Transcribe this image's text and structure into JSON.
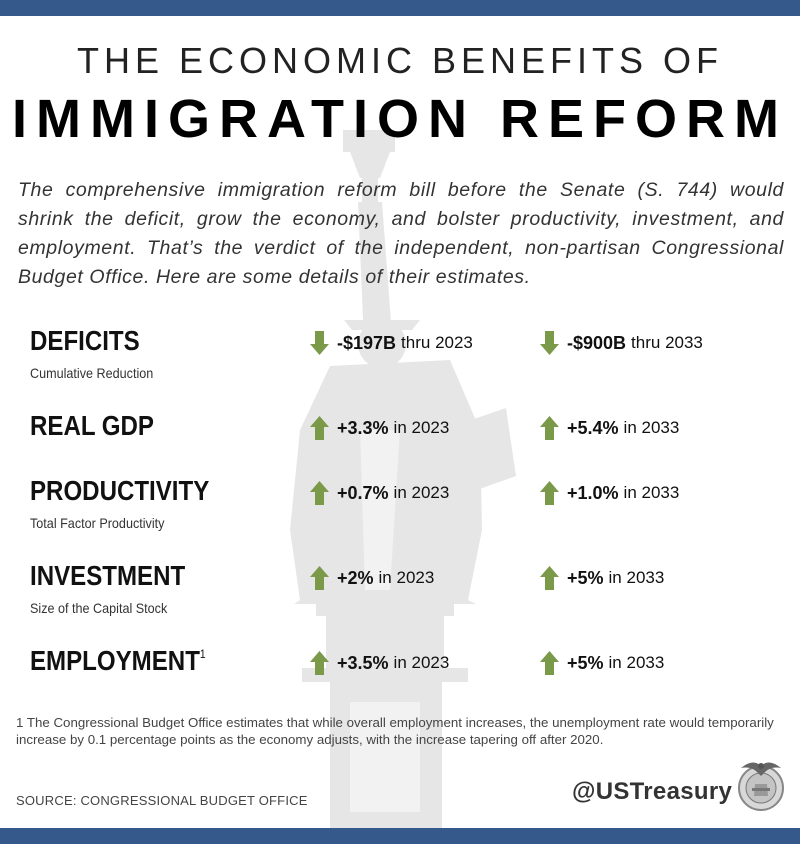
{
  "title": {
    "line1": "THE ECONOMIC BENEFITS OF",
    "line2": "IMMIGRATION REFORM"
  },
  "intro": "The comprehensive immigration reform bill before the Senate (S. 744) would shrink the deficit, grow the economy, and bolster productivity, investment, and employment. That’s the verdict of the independent, non-partisan Congressional Budget Office. Here are some details of their estimates.",
  "colors": {
    "bar": "#34598a",
    "arrow": "#7a9a4a",
    "watermark": "#e6e6e6"
  },
  "rows": [
    {
      "label": "DEFICITS",
      "sup": "",
      "sublabel": "Cumulative Reduction",
      "col1": {
        "direction": "down",
        "value": "-$197B",
        "suffix": "thru 2023"
      },
      "col2": {
        "direction": "down",
        "value": "-$900B",
        "suffix": "thru 2033"
      }
    },
    {
      "label": "REAL GDP",
      "sup": "",
      "sublabel": "",
      "col1": {
        "direction": "up",
        "value": "+3.3%",
        "suffix": "in 2023"
      },
      "col2": {
        "direction": "up",
        "value": "+5.4%",
        "suffix": "in 2033"
      }
    },
    {
      "label": "PRODUCTIVITY",
      "sup": "",
      "sublabel": "Total Factor Productivity",
      "col1": {
        "direction": "up",
        "value": "+0.7%",
        "suffix": "in 2023"
      },
      "col2": {
        "direction": "up",
        "value": "+1.0%",
        "suffix": "in 2033"
      }
    },
    {
      "label": "INVESTMENT",
      "sup": "",
      "sublabel": "Size of the Capital Stock",
      "col1": {
        "direction": "up",
        "value": "+2%",
        "suffix": "in 2023"
      },
      "col2": {
        "direction": "up",
        "value": "+5%",
        "suffix": "in 2033"
      }
    },
    {
      "label": "EMPLOYMENT",
      "sup": "1",
      "sublabel": "",
      "col1": {
        "direction": "up",
        "value": "+3.5%",
        "suffix": "in 2023"
      },
      "col2": {
        "direction": "up",
        "value": "+5%",
        "suffix": "in 2033"
      }
    }
  ],
  "footnote": "1  The Congressional Budget Office estimates that while overall employment increases, the unemployment rate would temporarily increase by 0.1 percentage points as the economy adjusts, with the increase tapering off after 2020.",
  "source": "SOURCE: CONGRESSIONAL BUDGET OFFICE",
  "handle": "@USTreasury",
  "icons": {
    "down": "down-arrow-icon",
    "up": "up-arrow-icon",
    "seal": "treasury-seal-icon"
  }
}
